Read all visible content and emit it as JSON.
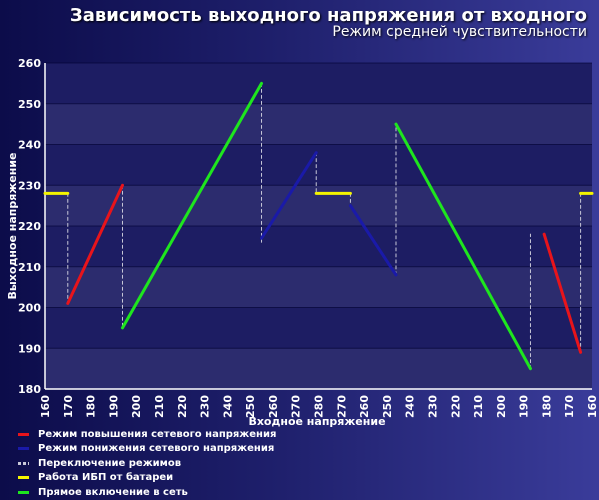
{
  "title": "Зависимость выходного напряжения от входного",
  "subtitle": "Режим средней чувствительности",
  "colors": {
    "boost": "#e8141b",
    "buck": "#1a1aa8",
    "switch": "#c8c8d8",
    "battery": "#f5f500",
    "bypass": "#1ee61e"
  },
  "chart_data": {
    "type": "line",
    "title": "Зависимость выходного напряжения от входного",
    "subtitle": "Режим средней чувствительности",
    "xlabel": "Входное напряжение",
    "ylabel": "Выходное напряжение",
    "categories": [
      "160",
      "170",
      "180",
      "190",
      "200",
      "210",
      "220",
      "230",
      "240",
      "250",
      "260",
      "270",
      "280",
      "270",
      "260",
      "250",
      "240",
      "230",
      "220",
      "210",
      "200",
      "190",
      "180",
      "170",
      "160"
    ],
    "ylim": [
      180,
      260
    ],
    "yticks": [
      180,
      190,
      200,
      210,
      220,
      230,
      240,
      250,
      260
    ],
    "grid": true,
    "legend_position": "bottom-left",
    "series": [
      {
        "name": "Режим повышения сетевого напряжения",
        "color": "#e8141b",
        "segments": [
          [
            [
              1.0,
              201
            ],
            [
              3.4,
              230
            ]
          ],
          [
            [
              21.9,
              218
            ],
            [
              23.5,
              189
            ]
          ]
        ]
      },
      {
        "name": "Режим понижения сетевого напряжения",
        "color": "#1a1aa8",
        "segments": [
          [
            [
              9.5,
              217
            ],
            [
              11.9,
              238
            ]
          ],
          [
            [
              13.4,
              225
            ],
            [
              15.4,
              208
            ]
          ]
        ]
      },
      {
        "name": "Переключение режимов",
        "color": "#c8c8d8",
        "dashed": true,
        "segments": [
          [
            [
              1.0,
              228
            ],
            [
              1.0,
              201
            ]
          ],
          [
            [
              3.4,
              230
            ],
            [
              3.4,
              195
            ]
          ],
          [
            [
              9.5,
              255
            ],
            [
              9.5,
              216
            ]
          ],
          [
            [
              11.9,
              238
            ],
            [
              11.9,
              228
            ]
          ],
          [
            [
              13.4,
              228
            ],
            [
              13.4,
              225
            ]
          ],
          [
            [
              15.4,
              208
            ],
            [
              15.4,
              245
            ]
          ],
          [
            [
              21.3,
              185
            ],
            [
              21.3,
              218
            ]
          ],
          [
            [
              23.5,
              189
            ],
            [
              23.5,
              228
            ]
          ]
        ]
      },
      {
        "name": "Работа ИБП от батареи",
        "color": "#f5f500",
        "segments": [
          [
            [
              0,
              228
            ],
            [
              1.0,
              228
            ]
          ],
          [
            [
              11.9,
              228
            ],
            [
              13.4,
              228
            ]
          ],
          [
            [
              23.5,
              228
            ],
            [
              24,
              228
            ]
          ]
        ]
      },
      {
        "name": "Прямое включение в сеть",
        "color": "#1ee61e",
        "segments": [
          [
            [
              3.4,
              195
            ],
            [
              9.5,
              255
            ]
          ],
          [
            [
              15.4,
              245
            ],
            [
              21.3,
              185
            ]
          ]
        ]
      }
    ]
  }
}
